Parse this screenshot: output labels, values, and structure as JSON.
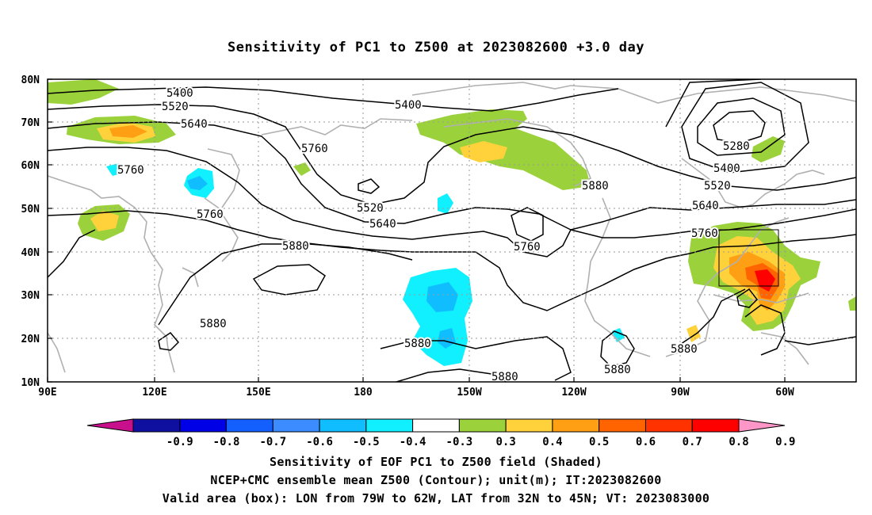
{
  "title": "Sensitivity of PC1 to Z500 at 2023082600 +3.0 day",
  "lat_labels": [
    "80N",
    "70N",
    "60N",
    "50N",
    "40N",
    "30N",
    "20N",
    "10N"
  ],
  "lon_labels": [
    "90E",
    "120E",
    "150E",
    "180",
    "150W",
    "120W",
    "90W",
    "60W"
  ],
  "contour_labels": [
    "5400",
    "5520",
    "5640",
    "5760",
    "5880",
    "5280",
    "5400",
    "5520",
    "5640",
    "5760",
    "5880",
    "5400",
    "5520",
    "5640",
    "5760",
    "5880",
    "5880",
    "5880",
    "5880",
    "5880",
    "5760",
    "5760"
  ],
  "colorbar": {
    "ticks": [
      "-0.9",
      "-0.8",
      "-0.7",
      "-0.6",
      "-0.5",
      "-0.4",
      "-0.3",
      "0.3",
      "0.4",
      "0.5",
      "0.6",
      "0.7",
      "0.8",
      "0.9"
    ],
    "colors": [
      "#c8108c",
      "#1010a0",
      "#0000e6",
      "#1460ff",
      "#3c8cff",
      "#10beff",
      "#10f0ff",
      "#ffffff",
      "#9bd23c",
      "#ffd23c",
      "#ffa014",
      "#ff6400",
      "#ff3200",
      "#ff0000",
      "#ff96c8"
    ]
  },
  "valid_box": {
    "lon_west": -79,
    "lon_east": -62,
    "lat_south": 32,
    "lat_north": 45
  },
  "captions": {
    "line1": "Sensitivity of EOF PC1 to Z500 field (Shaded)",
    "line2": "NCEP+CMC ensemble mean Z500 (Contour); unit(m); IT:2023082600",
    "line3": "Valid area (box): LON from 79W to 62W, LAT from 32N to 45N; VT: 2023083000"
  }
}
